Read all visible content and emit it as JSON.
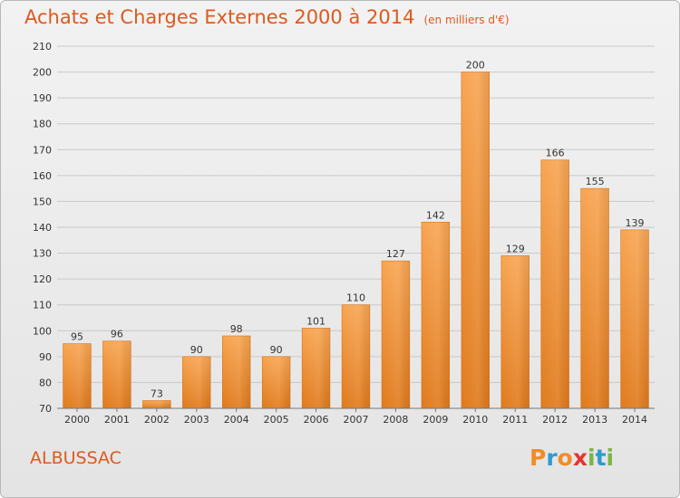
{
  "header": {
    "title": "Achats et Charges Externes 2000 à 2014",
    "subtitle": "(en milliers d'€)"
  },
  "footer": {
    "commune": "ALBUSSAC",
    "logo_letters": [
      "P",
      "r",
      "o",
      "x",
      "i",
      "t",
      "i"
    ],
    "logo_colors": [
      "#f28c28",
      "#2e9ad0",
      "#f28c28",
      "#e3342f",
      "#7ab648",
      "#2e9ad0",
      "#7ab648"
    ]
  },
  "chart_data": {
    "type": "bar",
    "title": "Achats et Charges Externes 2000 à 2014",
    "xlabel": "",
    "ylabel": "",
    "categories": [
      "2000",
      "2001",
      "2002",
      "2003",
      "2004",
      "2005",
      "2006",
      "2007",
      "2008",
      "2009",
      "2010",
      "2011",
      "2012",
      "2013",
      "2014"
    ],
    "values": [
      95,
      96,
      73,
      90,
      98,
      90,
      101,
      110,
      127,
      142,
      200,
      129,
      166,
      155,
      139
    ],
    "ylim": [
      70,
      210
    ],
    "yticks": [
      70,
      80,
      90,
      100,
      110,
      120,
      130,
      140,
      150,
      160,
      170,
      180,
      190,
      200,
      210
    ],
    "grid": true,
    "bar_color": "#f5a04a"
  }
}
